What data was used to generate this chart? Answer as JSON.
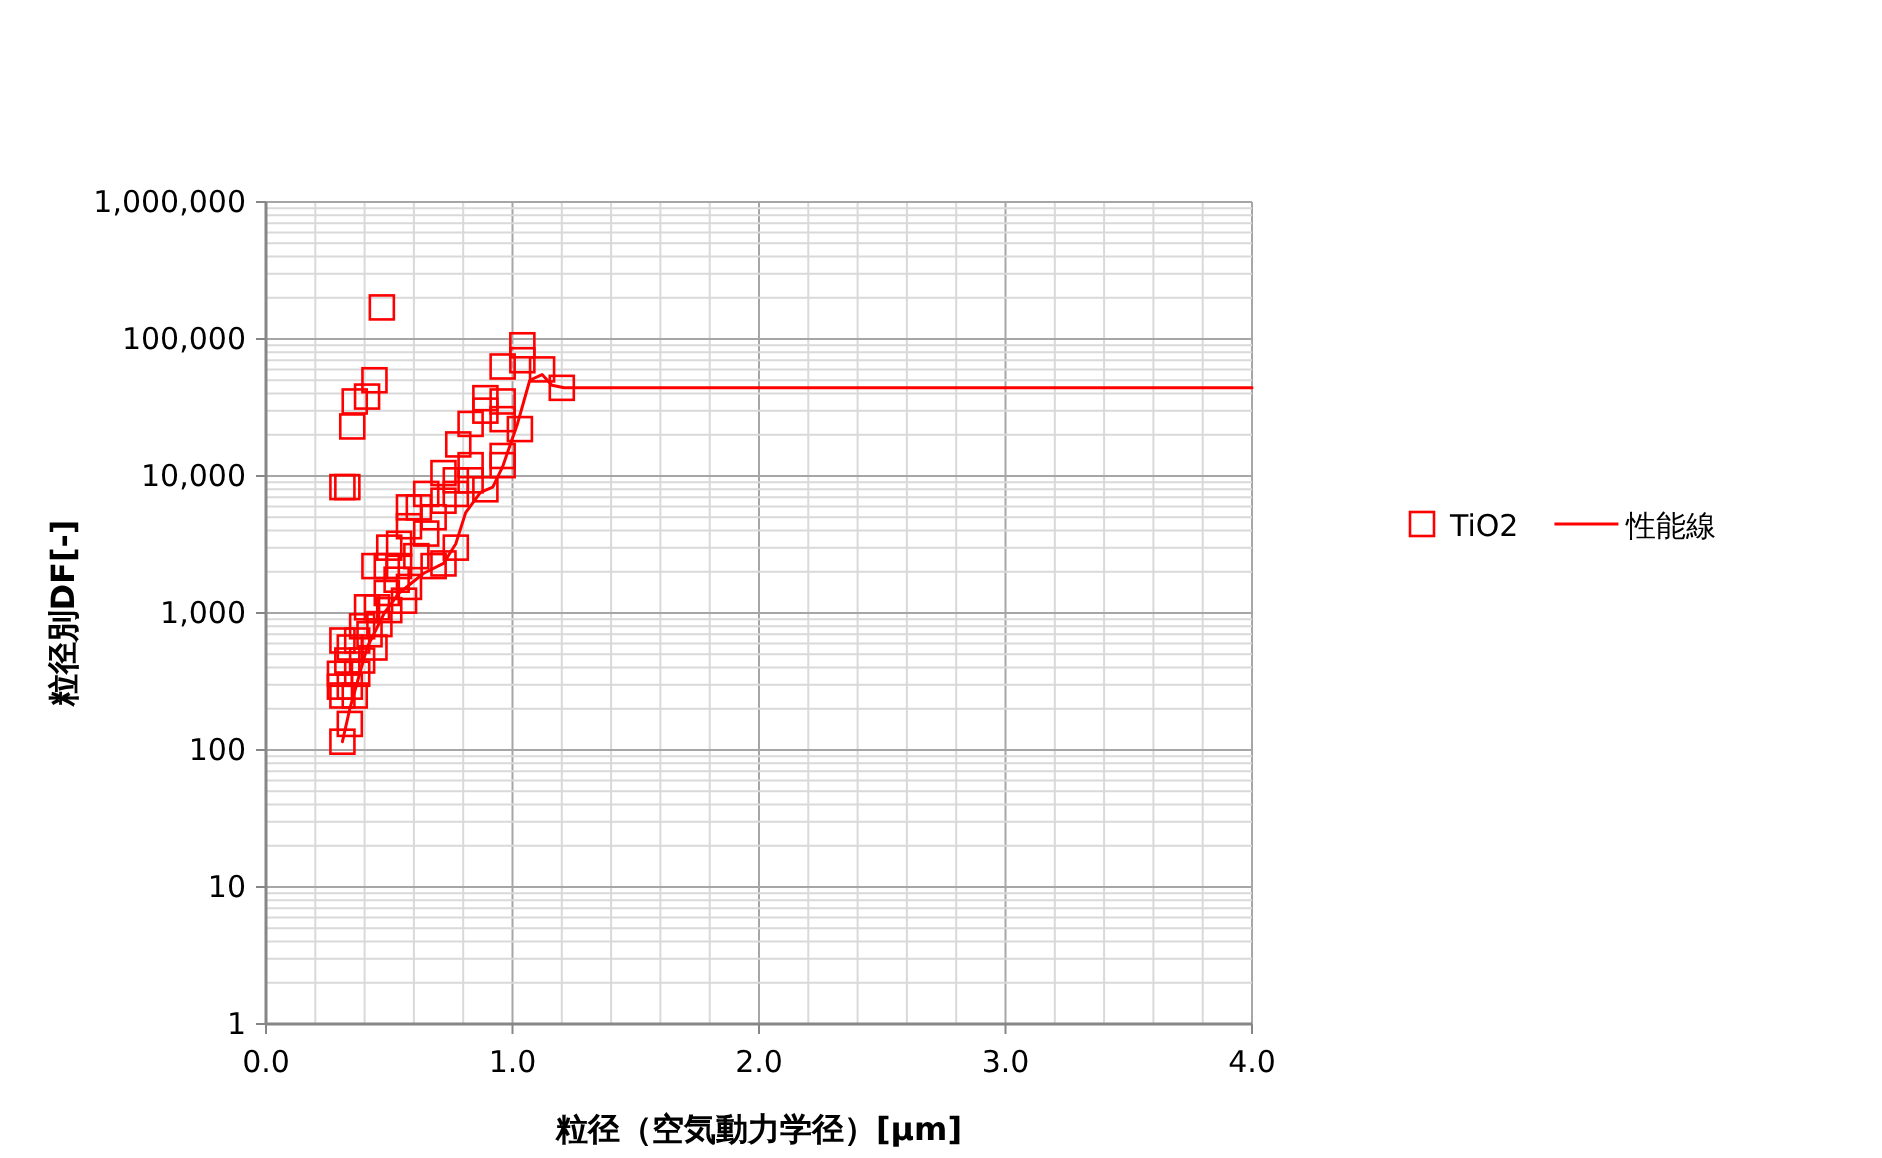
{
  "chart_data": {
    "type": "scatter",
    "xlabel": "粒径（空気動力学径）[μm]",
    "ylabel": "粒径別DF[-]",
    "xlim": [
      0,
      4
    ],
    "xticks": [
      {
        "value": 0,
        "label": "0.0"
      },
      {
        "value": 1,
        "label": "1.0"
      },
      {
        "value": 2,
        "label": "2.0"
      },
      {
        "value": 3,
        "label": "3.0"
      },
      {
        "value": 4,
        "label": "4.0"
      }
    ],
    "ylim": [
      1,
      1000000
    ],
    "yticks": [
      1,
      10,
      100,
      {
        "value": 1000,
        "label": "1,000"
      },
      {
        "value": 10000,
        "label": "10,000"
      },
      {
        "value": 100000,
        "label": "100,000"
      },
      {
        "value": 1000000,
        "label": "1,000,000"
      }
    ],
    "log": "y",
    "grid": true,
    "legend": "right",
    "series": [
      {
        "name": "TiO2",
        "marker": "square",
        "color": "#ff0000",
        "x": [
          0.47,
          0.44,
          0.41,
          0.36,
          0.35,
          0.31,
          0.33,
          1.04,
          1.04,
          0.96,
          1.12,
          1.2,
          0.89,
          0.89,
          0.96,
          0.83,
          0.96,
          1.03,
          0.78,
          0.96,
          0.96,
          0.83,
          0.89,
          0.83,
          0.77,
          0.72,
          0.77,
          0.72,
          0.65,
          0.62,
          0.58,
          0.68,
          0.77,
          0.72,
          0.65,
          0.58,
          0.54,
          0.5,
          0.44,
          0.49,
          0.54,
          0.61,
          0.68,
          0.58,
          0.53,
          0.49,
          0.45,
          0.41,
          0.5,
          0.56,
          0.46,
          0.42,
          0.39,
          0.37,
          0.44,
          0.34,
          0.31,
          0.33,
          0.39,
          0.37,
          0.3,
          0.34,
          0.3,
          0.36,
          0.31,
          0.34,
          0.31
        ],
        "values": [
          170000,
          50000,
          38000,
          35000,
          23000,
          8300,
          8300,
          90000,
          70000,
          63000,
          60000,
          44000,
          37000,
          30000,
          35000,
          24000,
          26000,
          22000,
          17000,
          14000,
          12000,
          12000,
          8000,
          9300,
          9300,
          10500,
          7400,
          6600,
          7400,
          5900,
          5900,
          5000,
          3000,
          2300,
          3800,
          4300,
          3200,
          3000,
          2200,
          2200,
          2200,
          2600,
          2200,
          1550,
          1750,
          1400,
          1100,
          1100,
          1050,
          1230,
          830,
          700,
          800,
          630,
          560,
          560,
          630,
          450,
          450,
          360,
          360,
          290,
          290,
          250,
          250,
          155,
          115
        ]
      },
      {
        "name": "性能線",
        "type": "line",
        "marker": "none",
        "line_style": "solid",
        "color": "#ff0000",
        "x": [
          0.31,
          0.34,
          0.41,
          0.48,
          0.54,
          0.64,
          0.72,
          0.77,
          0.81,
          0.87,
          0.92,
          0.96,
          1.02,
          1.07,
          1.12,
          1.16,
          1.21,
          4.0
        ],
        "values": [
          115,
          200,
          560,
          1000,
          1400,
          1950,
          2300,
          3200,
          5400,
          7600,
          8300,
          11700,
          24000,
          50000,
          55000,
          46000,
          44000,
          44000
        ]
      }
    ]
  }
}
